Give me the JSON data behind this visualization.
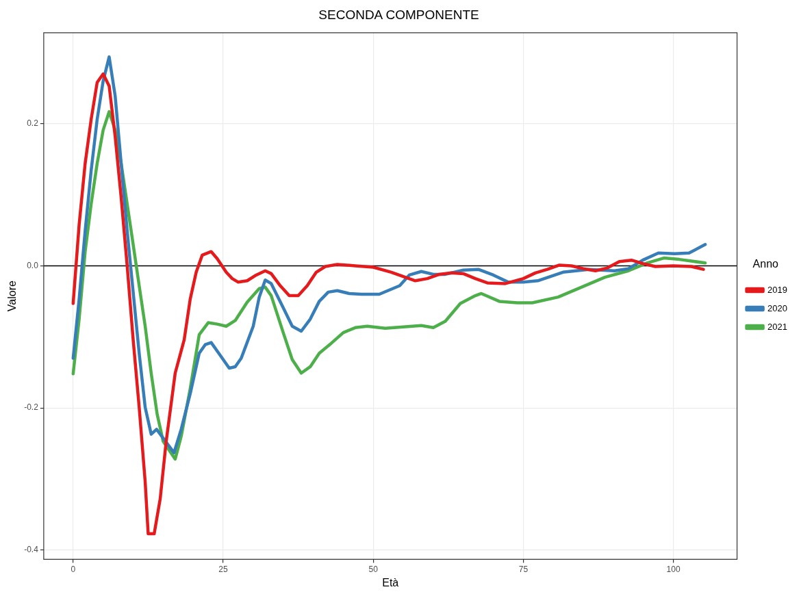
{
  "chart_data": {
    "type": "line",
    "title": "SECONDA COMPONENTE",
    "xlabel": "Età",
    "ylabel": "Valore",
    "legend_title": "Anno",
    "legend": "right",
    "grid": true,
    "marker": "none",
    "line_style": "solid",
    "xlim": [
      -4.9,
      110.6
    ],
    "xticks": [
      0,
      25,
      50,
      75,
      100
    ],
    "ylim": [
      -0.413,
      0.328
    ],
    "yticks": [
      {
        "value": -0.4,
        "label": "-0.4"
      },
      {
        "value": -0.2,
        "label": "-0.2"
      },
      {
        "value": 0,
        "label": "0.0"
      },
      {
        "value": 0.2,
        "label": "0.2"
      }
    ],
    "ref_lines": [
      {
        "axis": "y",
        "value": 0,
        "color": "#000000",
        "line_style": "solid"
      }
    ],
    "series": [
      {
        "name": "2019",
        "color": "#e41a1c",
        "x": [
          0,
          1,
          2,
          3,
          4,
          5,
          6,
          7,
          8,
          9,
          10,
          11,
          12,
          12.5,
          13.5,
          14.5,
          15.5,
          17,
          18.5,
          19.5,
          20.5,
          21.5,
          23,
          24,
          25.5,
          26.5,
          27.5,
          29,
          30.5,
          32,
          33,
          34.5,
          36,
          37.5,
          39,
          40.5,
          42,
          44,
          47,
          50,
          53,
          55,
          57,
          59,
          61,
          63,
          65,
          67,
          69,
          72,
          75,
          77,
          79,
          81,
          83,
          85,
          87,
          89,
          91,
          93,
          95,
          97,
          100,
          103,
          105
        ],
        "values": [
          -0.053,
          0.058,
          0.144,
          0.206,
          0.258,
          0.27,
          0.253,
          0.182,
          0.096,
          0.0,
          -0.104,
          -0.199,
          -0.304,
          -0.377,
          -0.377,
          -0.328,
          -0.247,
          -0.151,
          -0.104,
          -0.047,
          -0.009,
          0.015,
          0.02,
          0.01,
          -0.009,
          -0.018,
          -0.023,
          -0.021,
          -0.013,
          -0.007,
          -0.011,
          -0.028,
          -0.042,
          -0.042,
          -0.028,
          -0.009,
          -0.001,
          0.002,
          0.0,
          -0.002,
          -0.009,
          -0.015,
          -0.021,
          -0.018,
          -0.012,
          -0.01,
          -0.011,
          -0.018,
          -0.024,
          -0.025,
          -0.018,
          -0.01,
          -0.005,
          0.001,
          0.0,
          -0.004,
          -0.007,
          -0.003,
          0.006,
          0.008,
          0.003,
          -0.001,
          0.0,
          -0.001,
          -0.005
        ]
      },
      {
        "name": "2020",
        "color": "#377eb8",
        "x": [
          0,
          1,
          2,
          3,
          4,
          5,
          6,
          7,
          8,
          9,
          10,
          11,
          12,
          13,
          13.9,
          16.8,
          18,
          19.5,
          21,
          22,
          23,
          24.5,
          26,
          27,
          28,
          30,
          31,
          32,
          33,
          35,
          36.5,
          38,
          39.5,
          41,
          42.5,
          44,
          46,
          48,
          51,
          54.4,
          56,
          58,
          60,
          62,
          65,
          67.5,
          70,
          72.5,
          75,
          77.4,
          81.6,
          85.9,
          90.2,
          92.5,
          94.9,
          97.5,
          100.2,
          102.6,
          105.3
        ],
        "values": [
          -0.13,
          -0.047,
          0.049,
          0.134,
          0.206,
          0.26,
          0.294,
          0.239,
          0.144,
          0.049,
          -0.037,
          -0.123,
          -0.199,
          -0.237,
          -0.23,
          -0.263,
          -0.23,
          -0.18,
          -0.123,
          -0.111,
          -0.108,
          -0.126,
          -0.144,
          -0.142,
          -0.13,
          -0.085,
          -0.044,
          -0.02,
          -0.025,
          -0.059,
          -0.085,
          -0.092,
          -0.075,
          -0.05,
          -0.037,
          -0.035,
          -0.039,
          -0.04,
          -0.04,
          -0.028,
          -0.013,
          -0.008,
          -0.012,
          -0.012,
          -0.006,
          -0.005,
          -0.013,
          -0.023,
          -0.023,
          -0.021,
          -0.009,
          -0.005,
          -0.007,
          -0.004,
          0.008,
          0.018,
          0.017,
          0.018,
          0.03
        ]
      },
      {
        "name": "2021",
        "color": "#4daf4a",
        "x": [
          0,
          1,
          2,
          3,
          4,
          5,
          6,
          7,
          8,
          9,
          10,
          11,
          12,
          13,
          14,
          15,
          17,
          18,
          19.5,
          21,
          22.5,
          24,
          25.5,
          27,
          29,
          31,
          32,
          33,
          35,
          36.5,
          38,
          39.5,
          41,
          43,
          45,
          47,
          49,
          52,
          55,
          58,
          60,
          62,
          64.5,
          67,
          68,
          71,
          74,
          76.5,
          80.8,
          84.7,
          88.6,
          92.5,
          95.6,
          98.4,
          101,
          105.3
        ],
        "values": [
          -0.152,
          -0.075,
          0.02,
          0.087,
          0.144,
          0.191,
          0.217,
          0.191,
          0.144,
          0.087,
          0.03,
          -0.028,
          -0.085,
          -0.151,
          -0.209,
          -0.247,
          -0.272,
          -0.24,
          -0.173,
          -0.097,
          -0.08,
          -0.082,
          -0.085,
          -0.077,
          -0.051,
          -0.032,
          -0.03,
          -0.042,
          -0.094,
          -0.132,
          -0.151,
          -0.142,
          -0.123,
          -0.109,
          -0.094,
          -0.087,
          -0.085,
          -0.088,
          -0.086,
          -0.084,
          -0.087,
          -0.078,
          -0.053,
          -0.042,
          -0.039,
          -0.05,
          -0.052,
          -0.052,
          -0.044,
          -0.03,
          -0.016,
          -0.007,
          0.004,
          0.011,
          0.009,
          0.004
        ]
      }
    ]
  }
}
